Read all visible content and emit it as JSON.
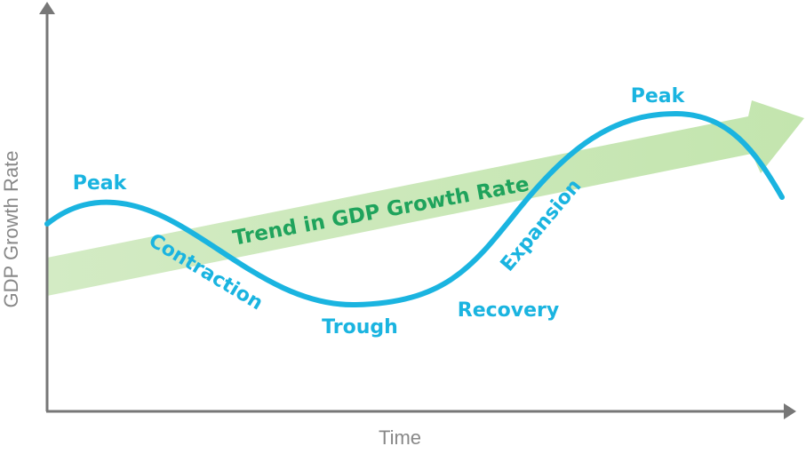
{
  "axes": {
    "y_label": "GDP Growth Rate",
    "x_label": "Time"
  },
  "trend": {
    "label": "Trend in GDP Growth Rate"
  },
  "phases": [
    {
      "label": "Peak"
    },
    {
      "label": "Contraction"
    },
    {
      "label": "Trough"
    },
    {
      "label": "Recovery"
    },
    {
      "label": "Expansion"
    },
    {
      "label": "Peak"
    }
  ]
}
